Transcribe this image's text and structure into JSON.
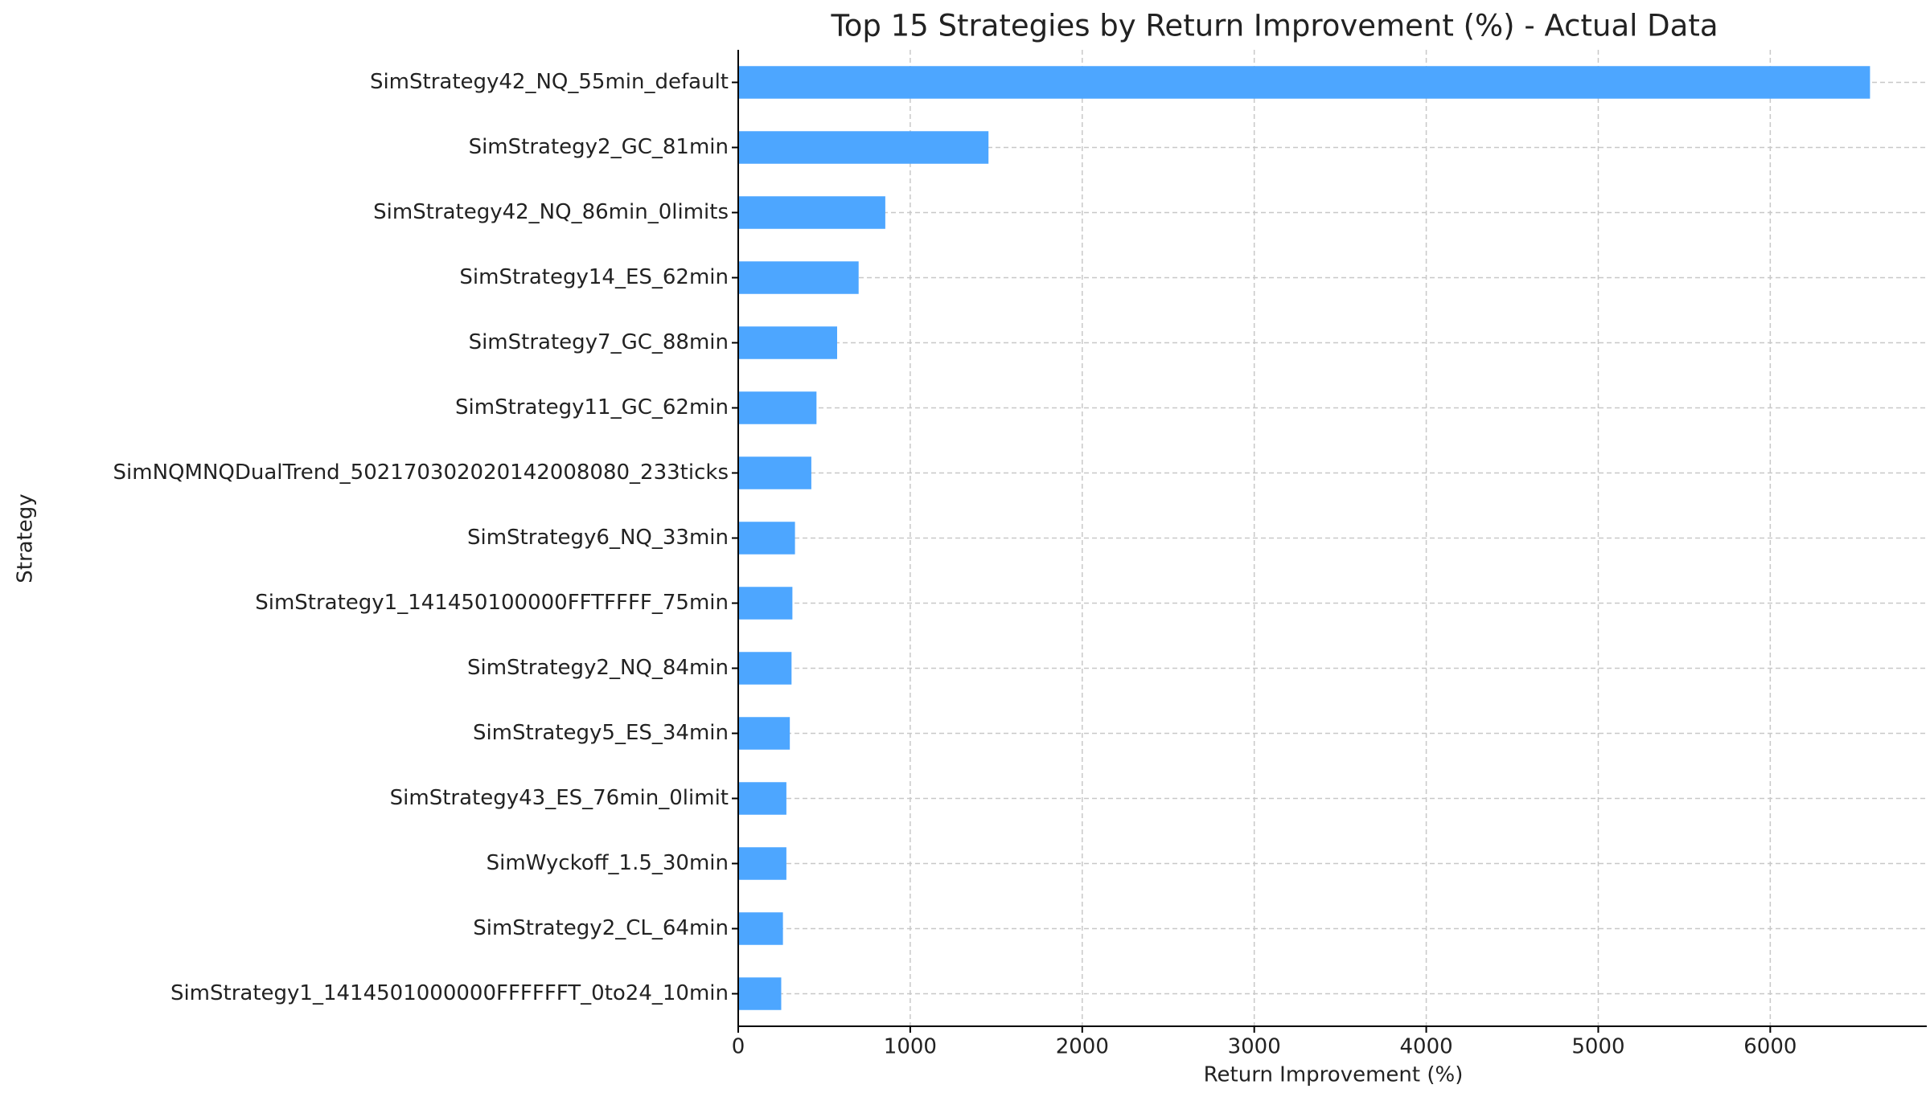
{
  "chart_data": {
    "type": "barh",
    "title": "Top 15 Strategies by Return Improvement (%) - Actual Data",
    "xlabel": "Return Improvement (%)",
    "ylabel": "Strategy",
    "categories": [
      "SimStrategy42_NQ_55min_default",
      "SimStrategy2_GC_81min",
      "SimStrategy42_NQ_86min_0limits",
      "SimStrategy14_ES_62min",
      "SimStrategy7_GC_88min",
      "SimStrategy11_GC_62min",
      "SimNQMNQDualTrend_50217030202014200808​0_233ticks",
      "SimStrategy6_NQ_33min",
      "SimStrategy1_141450100000FFTFFFF_75min",
      "SimStrategy2_NQ_84min",
      "SimStrategy5_ES_34min",
      "SimStrategy43_ES_76min_0limit",
      "SimWyckoff_1.5_30min",
      "SimStrategy2_CL_64min",
      "SimStrategy1_1414501000000FFFFFFT_0to24_10min"
    ],
    "values": [
      6580,
      1455,
      855,
      700,
      575,
      455,
      425,
      330,
      315,
      310,
      300,
      280,
      280,
      260,
      250
    ],
    "color": "#4da6ff",
    "xlim": [
      0,
      6910
    ],
    "xticks": [
      0,
      1000,
      2000,
      3000,
      4000,
      5000,
      6000
    ],
    "grid": true
  }
}
